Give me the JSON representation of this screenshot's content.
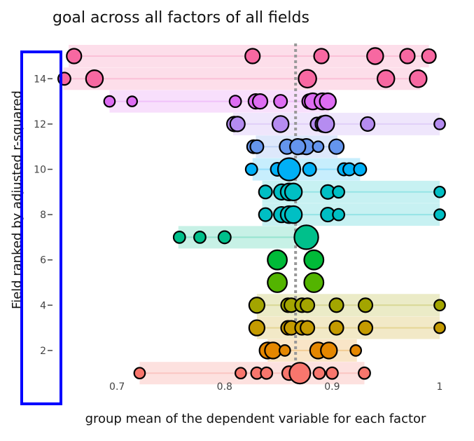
{
  "chart_data": {
    "type": "scatter",
    "title": "goal across all factors of all fields",
    "xlabel": "group mean of the dependent variable for each factor",
    "ylabel": "Field ranked by adjusted r-squared",
    "xlim": [
      0.6,
      1.0
    ],
    "ylim": [
      0,
      15
    ],
    "xticks": [
      0.7,
      0.8,
      0.9,
      1
    ],
    "xtick_labels": [
      "0.7",
      "0.8",
      "0.9",
      "1"
    ],
    "yticks": [
      2,
      4,
      6,
      8,
      10,
      12,
      14
    ],
    "ytick_labels": [
      "2",
      "4",
      "6",
      "8",
      "10",
      "12",
      "14"
    ],
    "reference_line": {
      "x": 0.866,
      "style": "dotted",
      "color": "#999999"
    },
    "highlight_box_color": "#0000ff",
    "fields": [
      {
        "rank": 15,
        "color": "#f768a1",
        "band": [
          0.655,
          0.99
        ],
        "mean": 0.865,
        "points": [
          [
            0.66,
            1
          ],
          [
            0.826,
            1
          ],
          [
            0.89,
            1
          ],
          [
            0.94,
            1.2
          ],
          [
            0.97,
            1
          ],
          [
            0.99,
            0.9
          ]
        ]
      },
      {
        "rank": 14,
        "color": "#f768a1",
        "band": [
          0.65,
          0.982
        ],
        "mean": 0.865,
        "points": [
          [
            0.651,
            0.7
          ],
          [
            0.679,
            1.3
          ],
          [
            0.877,
            1.4
          ],
          [
            0.95,
            1.3
          ],
          [
            0.98,
            1.3
          ]
        ]
      },
      {
        "rank": 13,
        "color": "#dd6df2",
        "band": [
          0.693,
          0.897
        ],
        "mean": 0.868,
        "points": [
          [
            0.693,
            0.5
          ],
          [
            0.714,
            0.4
          ],
          [
            0.81,
            0.6
          ],
          [
            0.829,
            1
          ],
          [
            0.833,
            1
          ],
          [
            0.852,
            0.8
          ],
          [
            0.879,
            1
          ],
          [
            0.882,
            1.2
          ],
          [
            0.891,
            1.2
          ],
          [
            0.896,
            1.2
          ]
        ]
      },
      {
        "rank": 12,
        "color": "#b58cf0",
        "band": [
          0.808,
          1.0
        ],
        "mean": 0.87,
        "points": [
          [
            0.809,
            1
          ],
          [
            0.812,
            1
          ],
          [
            0.852,
            1.2
          ],
          [
            0.886,
            0.8
          ],
          [
            0.892,
            1.2
          ],
          [
            0.894,
            1.3
          ],
          [
            0.933,
            0.9
          ],
          [
            1.0,
            0.5
          ]
        ]
      },
      {
        "rank": 11,
        "color": "#6495ed",
        "band": [
          0.829,
          0.905
        ],
        "mean": 0.866,
        "points": [
          [
            0.827,
            0.8
          ],
          [
            0.83,
            0.8
          ],
          [
            0.858,
            1
          ],
          [
            0.871,
            1
          ],
          [
            0.876,
            1.1
          ],
          [
            0.868,
            1.1
          ],
          [
            0.887,
            0.5
          ],
          [
            0.904,
            1
          ]
        ]
      },
      {
        "rank": 10,
        "color": "#00b0f6",
        "band": [
          0.826,
          0.926
        ],
        "mean": 0.865,
        "points": [
          [
            0.825,
            0.6
          ],
          [
            0.849,
            0.8
          ],
          [
            0.86,
            2
          ],
          [
            0.879,
            0.8
          ],
          [
            0.911,
            0.7
          ],
          [
            0.916,
            0.7
          ],
          [
            0.926,
            0.7
          ]
        ]
      },
      {
        "rank": 9,
        "color": "#00bfc4",
        "band": [
          0.835,
          1.0
        ],
        "mean": 0.866,
        "points": [
          [
            0.838,
            0.8
          ],
          [
            0.853,
            1.1
          ],
          [
            0.86,
            1.3
          ],
          [
            0.864,
            1.3
          ],
          [
            0.896,
            0.9
          ],
          [
            0.906,
            0.6
          ],
          [
            1.0,
            0.5
          ]
        ]
      },
      {
        "rank": 8,
        "color": "#00bfc4",
        "band": [
          0.835,
          1.0
        ],
        "mean": 0.866,
        "points": [
          [
            0.838,
            0.8
          ],
          [
            0.853,
            1.1
          ],
          [
            0.86,
            1.3
          ],
          [
            0.864,
            1.3
          ],
          [
            0.896,
            0.9
          ],
          [
            0.906,
            0.6
          ],
          [
            1.0,
            0.5
          ]
        ]
      },
      {
        "rank": 7,
        "color": "#00c08b",
        "band": [
          0.757,
          0.867
        ],
        "mean": 0.866,
        "points": [
          [
            0.758,
            0.6
          ],
          [
            0.777,
            0.6
          ],
          [
            0.8,
            0.7
          ],
          [
            0.876,
            2.2
          ]
        ]
      },
      {
        "rank": 6,
        "color": "#00ba38",
        "band": null,
        "mean": 0.866,
        "points": [
          [
            0.849,
            1.6
          ],
          [
            0.883,
            1.6
          ]
        ]
      },
      {
        "rank": 5,
        "color": "#53b400",
        "band": null,
        "mean": 0.866,
        "points": [
          [
            0.849,
            1.6
          ],
          [
            0.883,
            1.6
          ]
        ]
      },
      {
        "rank": 4,
        "color": "#a3a500",
        "band": [
          0.83,
          1.0
        ],
        "mean": 0.866,
        "points": [
          [
            0.83,
            1.1
          ],
          [
            0.859,
            0.9
          ],
          [
            0.862,
            0.9
          ],
          [
            0.872,
            0.9
          ],
          [
            0.877,
            0.9
          ],
          [
            0.904,
            0.9
          ],
          [
            0.931,
            0.9
          ],
          [
            1.0,
            0.5
          ]
        ]
      },
      {
        "rank": 3,
        "color": "#c49a00",
        "band": [
          0.83,
          1.0
        ],
        "mean": 0.866,
        "points": [
          [
            0.83,
            1.1
          ],
          [
            0.859,
            0.9
          ],
          [
            0.862,
            0.9
          ],
          [
            0.872,
            0.9
          ],
          [
            0.877,
            0.9
          ],
          [
            0.904,
            0.9
          ],
          [
            0.931,
            0.9
          ],
          [
            1.0,
            0.5
          ]
        ]
      },
      {
        "rank": 2,
        "color": "#e58700",
        "band": [
          0.84,
          0.923
        ],
        "mean": 0.866,
        "points": [
          [
            0.84,
            1.2
          ],
          [
            0.845,
            1.2
          ],
          [
            0.856,
            0.5
          ],
          [
            0.887,
            1.2
          ],
          [
            0.897,
            1.2
          ],
          [
            0.922,
            0.5
          ]
        ]
      },
      {
        "rank": 1,
        "color": "#f8766d",
        "band": [
          0.721,
          0.93
        ],
        "mean": 0.868,
        "points": [
          [
            0.721,
            0.5
          ],
          [
            0.815,
            0.5
          ],
          [
            0.83,
            0.6
          ],
          [
            0.839,
            0.6
          ],
          [
            0.86,
            0.9
          ],
          [
            0.87,
            1.8
          ],
          [
            0.888,
            0.6
          ],
          [
            0.9,
            0.6
          ],
          [
            0.93,
            0.6
          ]
        ]
      }
    ]
  }
}
